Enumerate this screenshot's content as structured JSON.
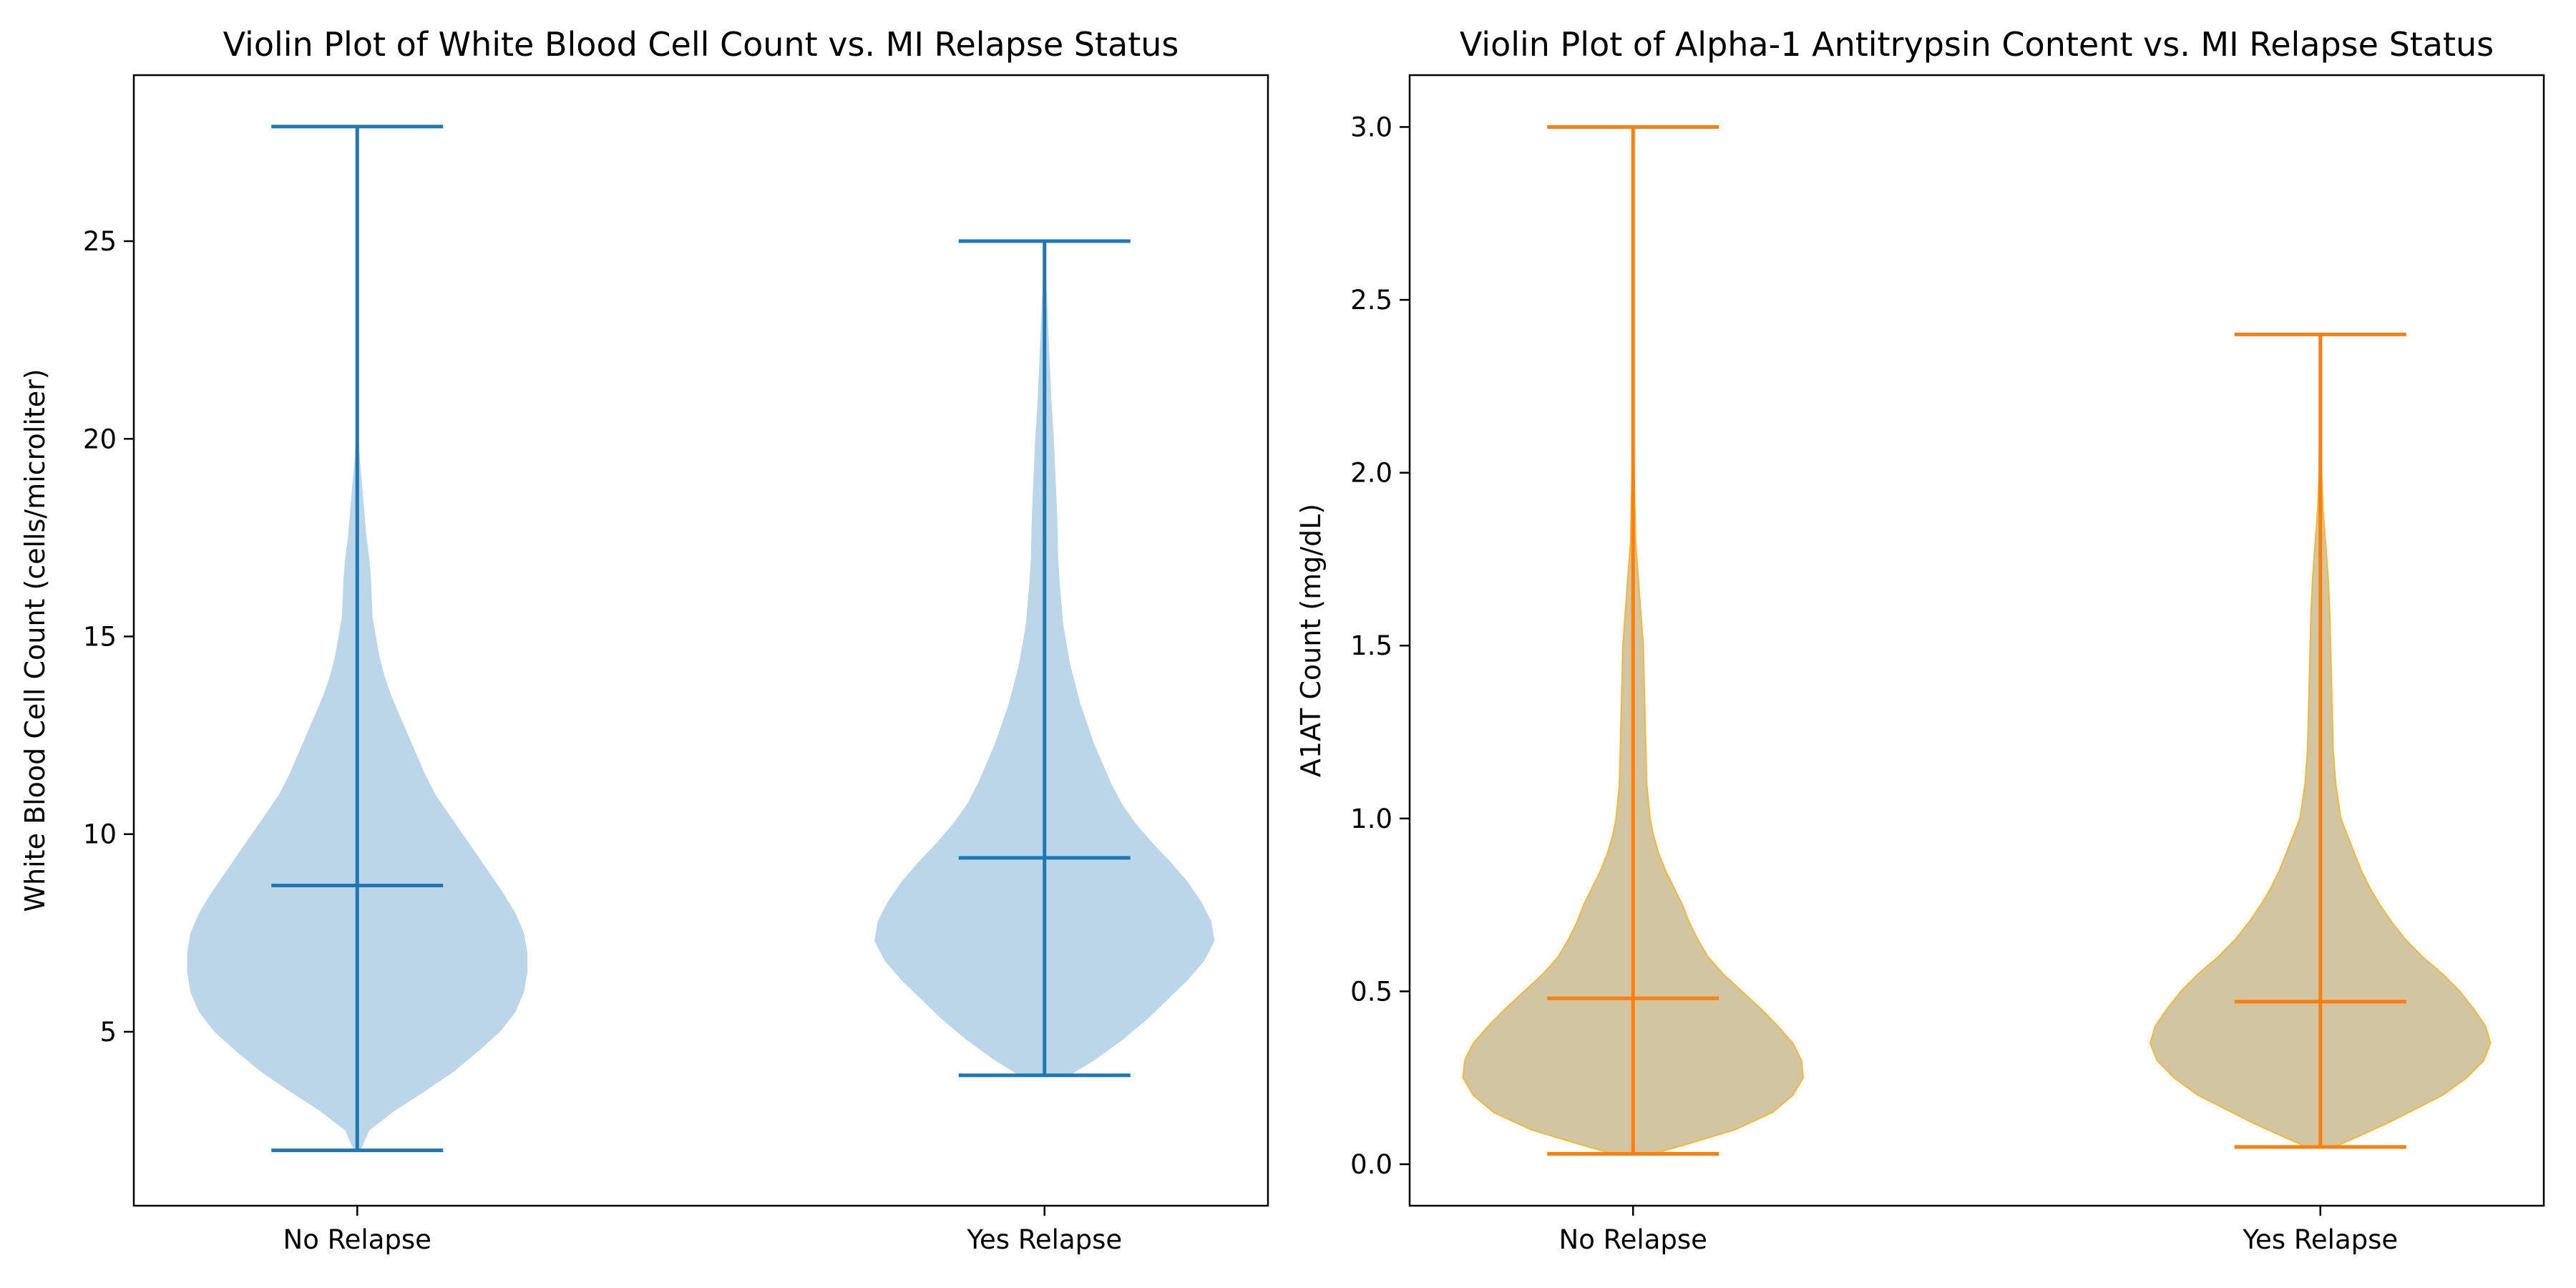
{
  "chart_data": [
    {
      "type": "violin",
      "title": "Violin Plot of White Blood Cell Count vs. MI Relapse Status",
      "xlabel": "",
      "ylabel": "White Blood Cell Count (cells/microliter)",
      "ylim": [
        0.6,
        29.2
      ],
      "yticks": [
        5,
        10,
        15,
        20,
        25
      ],
      "grid": false,
      "categories": [
        "No Relapse",
        "Yes Relapse"
      ],
      "fill_color": "#bad6e8",
      "line_color": "#1f77b4",
      "series": [
        {
          "category": "No Relapse",
          "min": 2.0,
          "max": 27.9,
          "mean": 8.7,
          "density": [
            [
              2.0,
              0.02
            ],
            [
              2.5,
              0.07
            ],
            [
              3.0,
              0.22
            ],
            [
              3.5,
              0.4
            ],
            [
              4.0,
              0.57
            ],
            [
              4.5,
              0.71
            ],
            [
              5.0,
              0.84
            ],
            [
              5.5,
              0.93
            ],
            [
              6.0,
              0.98
            ],
            [
              6.5,
              1.0
            ],
            [
              7.0,
              1.0
            ],
            [
              7.5,
              0.98
            ],
            [
              8.0,
              0.93
            ],
            [
              8.5,
              0.86
            ],
            [
              9.0,
              0.78
            ],
            [
              9.5,
              0.7
            ],
            [
              10.0,
              0.62
            ],
            [
              10.5,
              0.54
            ],
            [
              11.0,
              0.46
            ],
            [
              11.5,
              0.4
            ],
            [
              12.0,
              0.35
            ],
            [
              12.5,
              0.3
            ],
            [
              13.0,
              0.25
            ],
            [
              13.5,
              0.2
            ],
            [
              14.0,
              0.16
            ],
            [
              14.5,
              0.13
            ],
            [
              15.0,
              0.11
            ],
            [
              15.5,
              0.09
            ],
            [
              16.0,
              0.085
            ],
            [
              16.5,
              0.08
            ],
            [
              17.0,
              0.07
            ],
            [
              17.5,
              0.055
            ],
            [
              18.0,
              0.045
            ],
            [
              18.5,
              0.035
            ],
            [
              19.0,
              0.025
            ],
            [
              19.5,
              0.015
            ],
            [
              20.0,
              0.008
            ],
            [
              21.0,
              0.004
            ],
            [
              22.0,
              0.002
            ],
            [
              24.0,
              0.001
            ],
            [
              27.9,
              0.0
            ]
          ]
        },
        {
          "category": "Yes Relapse",
          "min": 3.9,
          "max": 25.0,
          "mean": 9.4,
          "density": [
            [
              3.9,
              0.15
            ],
            [
              4.3,
              0.3
            ],
            [
              4.8,
              0.46
            ],
            [
              5.3,
              0.6
            ],
            [
              5.8,
              0.72
            ],
            [
              6.3,
              0.84
            ],
            [
              6.8,
              0.94
            ],
            [
              7.3,
              1.0
            ],
            [
              7.8,
              0.98
            ],
            [
              8.3,
              0.92
            ],
            [
              8.8,
              0.84
            ],
            [
              9.3,
              0.74
            ],
            [
              9.8,
              0.63
            ],
            [
              10.3,
              0.53
            ],
            [
              10.8,
              0.45
            ],
            [
              11.3,
              0.39
            ],
            [
              11.8,
              0.34
            ],
            [
              12.3,
              0.29
            ],
            [
              12.8,
              0.25
            ],
            [
              13.3,
              0.21
            ],
            [
              13.8,
              0.18
            ],
            [
              14.3,
              0.15
            ],
            [
              14.8,
              0.13
            ],
            [
              15.3,
              0.11
            ],
            [
              15.8,
              0.1
            ],
            [
              16.3,
              0.09
            ],
            [
              17.0,
              0.08
            ],
            [
              18.0,
              0.075
            ],
            [
              19.0,
              0.065
            ],
            [
              20.0,
              0.055
            ],
            [
              21.0,
              0.04
            ],
            [
              22.0,
              0.03
            ],
            [
              23.0,
              0.02
            ],
            [
              24.0,
              0.01
            ],
            [
              25.0,
              0.002
            ]
          ]
        }
      ]
    },
    {
      "type": "violin",
      "title": "Violin Plot of Alpha-1 Antitrypsin Content vs. MI Relapse Status",
      "xlabel": "",
      "ylabel": "A1AT Count (mg/dL)",
      "ylim": [
        -0.12,
        3.15
      ],
      "yticks": [
        0.0,
        0.5,
        1.0,
        1.5,
        2.0,
        2.5,
        3.0
      ],
      "grid": false,
      "categories": [
        "No Relapse",
        "Yes Relapse"
      ],
      "fill_color": "#d1c6a1",
      "edge_color": "#f3b73a",
      "line_color": "#ff7f0e",
      "series": [
        {
          "category": "No Relapse",
          "min": 0.03,
          "max": 3.0,
          "mean": 0.48,
          "density": [
            [
              0.03,
              0.12
            ],
            [
              0.06,
              0.33
            ],
            [
              0.1,
              0.6
            ],
            [
              0.15,
              0.82
            ],
            [
              0.2,
              0.94
            ],
            [
              0.25,
              1.0
            ],
            [
              0.3,
              0.99
            ],
            [
              0.35,
              0.94
            ],
            [
              0.4,
              0.85
            ],
            [
              0.45,
              0.75
            ],
            [
              0.5,
              0.64
            ],
            [
              0.55,
              0.53
            ],
            [
              0.6,
              0.44
            ],
            [
              0.65,
              0.38
            ],
            [
              0.7,
              0.33
            ],
            [
              0.75,
              0.29
            ],
            [
              0.8,
              0.24
            ],
            [
              0.85,
              0.19
            ],
            [
              0.9,
              0.15
            ],
            [
              0.95,
              0.12
            ],
            [
              1.0,
              0.1
            ],
            [
              1.1,
              0.08
            ],
            [
              1.2,
              0.075
            ],
            [
              1.3,
              0.07
            ],
            [
              1.4,
              0.065
            ],
            [
              1.5,
              0.06
            ],
            [
              1.6,
              0.045
            ],
            [
              1.7,
              0.03
            ],
            [
              1.8,
              0.015
            ],
            [
              2.0,
              0.006
            ],
            [
              2.3,
              0.003
            ],
            [
              2.7,
              0.001
            ],
            [
              3.0,
              0.0
            ]
          ]
        },
        {
          "category": "Yes Relapse",
          "min": 0.05,
          "max": 2.4,
          "mean": 0.47,
          "density": [
            [
              0.05,
              0.08
            ],
            [
              0.08,
              0.22
            ],
            [
              0.12,
              0.4
            ],
            [
              0.16,
              0.56
            ],
            [
              0.2,
              0.72
            ],
            [
              0.25,
              0.86
            ],
            [
              0.3,
              0.96
            ],
            [
              0.35,
              1.0
            ],
            [
              0.4,
              0.97
            ],
            [
              0.45,
              0.9
            ],
            [
              0.5,
              0.82
            ],
            [
              0.55,
              0.72
            ],
            [
              0.6,
              0.6
            ],
            [
              0.65,
              0.5
            ],
            [
              0.7,
              0.42
            ],
            [
              0.75,
              0.35
            ],
            [
              0.8,
              0.29
            ],
            [
              0.85,
              0.24
            ],
            [
              0.9,
              0.2
            ],
            [
              0.95,
              0.16
            ],
            [
              1.0,
              0.12
            ],
            [
              1.1,
              0.09
            ],
            [
              1.2,
              0.075
            ],
            [
              1.3,
              0.07
            ],
            [
              1.4,
              0.065
            ],
            [
              1.5,
              0.06
            ],
            [
              1.6,
              0.055
            ],
            [
              1.7,
              0.045
            ],
            [
              1.8,
              0.03
            ],
            [
              1.9,
              0.015
            ],
            [
              2.0,
              0.007
            ],
            [
              2.2,
              0.003
            ],
            [
              2.4,
              0.0
            ]
          ]
        }
      ]
    }
  ]
}
